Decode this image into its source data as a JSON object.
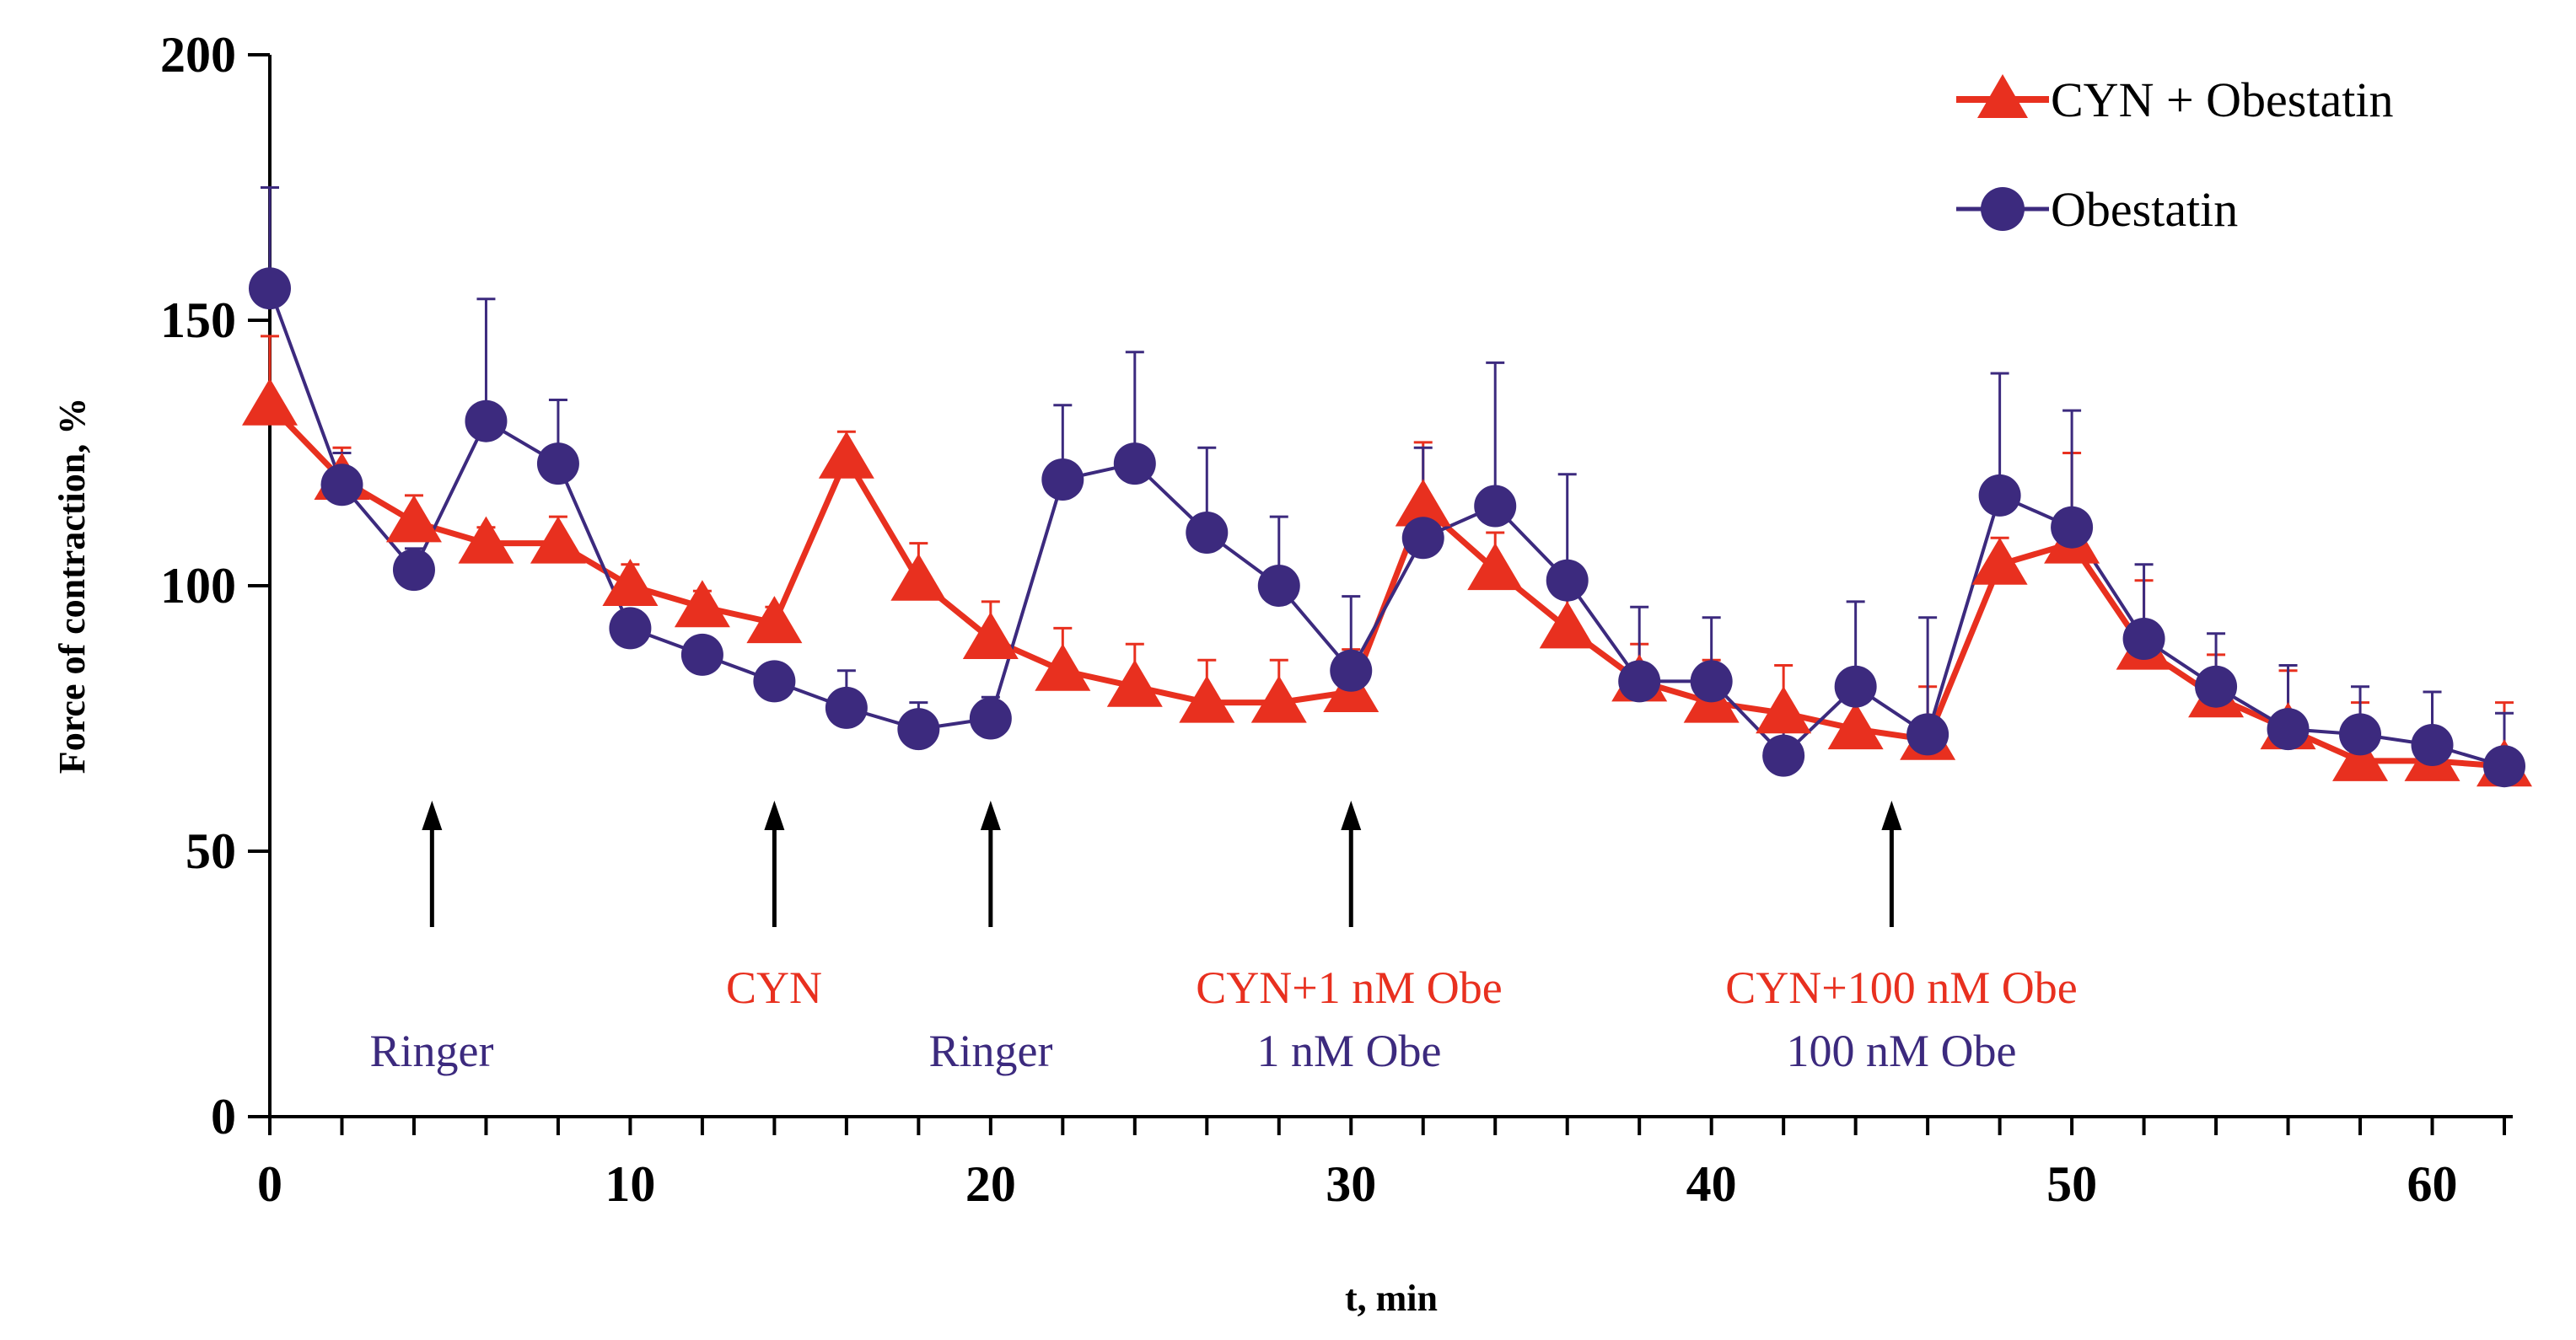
{
  "chart_data": {
    "type": "line",
    "title": "",
    "xlabel": "t, min",
    "ylabel": "Force of contraction, %",
    "xlim": [
      0,
      62
    ],
    "ylim": [
      0,
      200
    ],
    "x_ticks": [
      "0",
      "10",
      "20",
      "30",
      "40",
      "50",
      "60"
    ],
    "y_ticks": [
      "0",
      "50",
      "100",
      "150",
      "200"
    ],
    "x": [
      0,
      2,
      4,
      6,
      8,
      10,
      12,
      14,
      16,
      18,
      20,
      22,
      24,
      26,
      28,
      30,
      32,
      34,
      36,
      38,
      40,
      42,
      44,
      46,
      48,
      50,
      52,
      54,
      56,
      58,
      60,
      62
    ],
    "series": [
      {
        "name": "CYN + Obestatin",
        "color": "#e8301f",
        "marker": "triangle",
        "values": [
          134,
          120,
          112,
          108,
          108,
          100,
          96,
          93,
          124,
          101,
          90,
          84,
          81,
          78,
          78,
          80,
          115,
          103,
          92,
          82,
          78,
          76,
          73,
          71,
          104,
          108,
          88,
          79,
          73,
          67,
          67,
          66
        ],
        "errors": [
          13,
          6,
          5,
          3,
          5,
          4,
          3,
          3,
          5,
          7,
          7,
          8,
          8,
          8,
          8,
          8,
          12,
          7,
          6,
          7,
          8,
          9,
          6,
          10,
          5,
          17,
          13,
          8,
          11,
          11,
          13,
          12
        ]
      },
      {
        "name": "Obestatin",
        "color": "#3c2a7e",
        "marker": "circle",
        "values": [
          156,
          119,
          103,
          131,
          123,
          92,
          87,
          82,
          77,
          73,
          75,
          120,
          123,
          110,
          100,
          84,
          109,
          115,
          101,
          82,
          82,
          68,
          81,
          72,
          117,
          111,
          90,
          81,
          73,
          72,
          70,
          66
        ],
        "errors": [
          19,
          6,
          4,
          23,
          12,
          3,
          3,
          3,
          7,
          5,
          4,
          14,
          21,
          16,
          13,
          14,
          17,
          27,
          20,
          14,
          12,
          7,
          16,
          22,
          23,
          22,
          14,
          10,
          12,
          9,
          10,
          10
        ]
      }
    ],
    "legend": {
      "position": "top-right",
      "entries": [
        "CYN + Obestatin",
        "Obestatin"
      ]
    },
    "annotations": [
      {
        "id": "ringer1",
        "text": "Ringer",
        "color": "#3c2a7e",
        "x": 4.5
      },
      {
        "id": "cyn",
        "text": "CYN",
        "color": "#e8301f",
        "x": 14
      },
      {
        "id": "ringer2",
        "text": "Ringer",
        "color": "#3c2a7e",
        "x": 20
      },
      {
        "id": "cyn1",
        "text": "CYN+1 nM Obe",
        "color": "#e8301f",
        "x": 30
      },
      {
        "id": "obe1",
        "text": "1 nM Obe",
        "color": "#3c2a7e",
        "x": 30
      },
      {
        "id": "cyn100",
        "text": "CYN+100 nM Obe",
        "color": "#e8301f",
        "x": 45
      },
      {
        "id": "obe100",
        "text": "100 nM Obe",
        "color": "#3c2a7e",
        "x": 45
      }
    ],
    "arrow_x": [
      4.5,
      14,
      20,
      30,
      45
    ]
  }
}
